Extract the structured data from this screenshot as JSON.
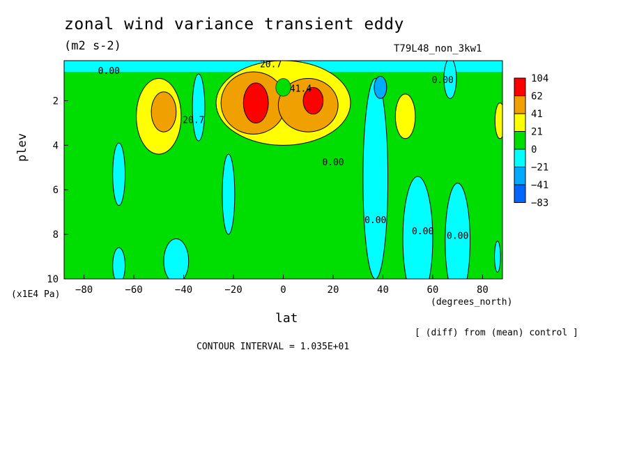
{
  "title": "zonal wind variance transient eddy",
  "units": "(m2 s-2)",
  "run_label": "T79L48_non_3kw1",
  "note": "[ (diff) from (mean) control ]",
  "contour_interval": "CONTOUR INTERVAL = 1.035E+01",
  "chart_data": {
    "type": "heatmap",
    "title": "zonal wind variance transient eddy",
    "subtitle": "(m2 s-2)",
    "xlabel": "lat",
    "x_unit": "(degrees_north)",
    "ylabel": "plev",
    "y_unit": "(x1E4 Pa)",
    "xlim": [
      -88,
      88
    ],
    "ylim": [
      10,
      0.2
    ],
    "x_ticks": [
      -80,
      -60,
      -40,
      -20,
      0,
      20,
      40,
      60,
      80
    ],
    "y_ticks": [
      2,
      4,
      6,
      8,
      10
    ],
    "colorbar": {
      "labels": [
        "104",
        "62",
        "41",
        "21",
        "0",
        "-21",
        "-41",
        "-83"
      ],
      "colors": [
        "#ff0000",
        "#f0a000",
        "#ffff00",
        "#00dd00",
        "#00ffff",
        "#00aaff",
        "#0066ff"
      ]
    },
    "contour_labels": [
      {
        "text": "0.00",
        "lat": -70,
        "plev": 0.8
      },
      {
        "text": "20.7",
        "lat": -5,
        "plev": 0.5
      },
      {
        "text": "41.4",
        "lat": 7,
        "plev": 1.6
      },
      {
        "text": "20.7",
        "lat": -36,
        "plev": 3.0
      },
      {
        "text": "0.00",
        "lat": 20,
        "plev": 4.9
      },
      {
        "text": "0.00",
        "lat": 37,
        "plev": 7.5
      },
      {
        "text": "0.00",
        "lat": 56,
        "plev": 8.0
      },
      {
        "text": "0.00",
        "lat": 70,
        "plev": 8.2
      },
      {
        "text": "0.00",
        "lat": 64,
        "plev": 1.2
      }
    ],
    "regions": [
      {
        "level": "0_to_21",
        "shape": "background",
        "lat_range": [
          -88,
          88
        ],
        "plev_range": [
          0.2,
          10
        ]
      },
      {
        "level": "-21_to_0",
        "shape": "band",
        "lat_range": [
          -88,
          88
        ],
        "plev_range": [
          0.2,
          0.7
        ]
      },
      {
        "level": "-21_to_0",
        "shape": "ellipse",
        "lat": -66,
        "plev": 5.3,
        "dlat": 2.5,
        "dplev": 1.4
      },
      {
        "level": "-21_to_0",
        "shape": "ellipse",
        "lat": -66,
        "plev": 9.4,
        "dlat": 2.5,
        "dplev": 0.8
      },
      {
        "level": "-21_to_0",
        "shape": "ellipse",
        "lat": -43,
        "plev": 9.2,
        "dlat": 5,
        "dplev": 1.0
      },
      {
        "level": "-21_to_0",
        "shape": "ellipse",
        "lat": -22,
        "plev": 6.2,
        "dlat": 2.5,
        "dplev": 1.8
      },
      {
        "level": "-21_to_0",
        "shape": "ellipse",
        "lat": -34,
        "plev": 2.3,
        "dlat": 2.5,
        "dplev": 1.5
      },
      {
        "level": "-21_to_0",
        "shape": "column",
        "lat": 37,
        "plev": 5.5,
        "dlat": 5,
        "dplev": 4.5
      },
      {
        "level": "-21_to_0",
        "shape": "ellipse",
        "lat": 54,
        "plev": 8.2,
        "dlat": 6,
        "dplev": 2.8
      },
      {
        "level": "-21_to_0",
        "shape": "ellipse",
        "lat": 70,
        "plev": 8.3,
        "dlat": 5,
        "dplev": 2.6
      },
      {
        "level": "-21_to_0",
        "shape": "ellipse",
        "lat": 67,
        "plev": 1.0,
        "dlat": 2.5,
        "dplev": 0.9
      },
      {
        "level": "-21_to_0",
        "shape": "ellipse",
        "lat": 86,
        "plev": 9.0,
        "dlat": 1.2,
        "dplev": 0.7
      },
      {
        "level": "-41_to_-21",
        "shape": "ellipse",
        "lat": 39,
        "plev": 1.4,
        "dlat": 2.5,
        "dplev": 0.5
      },
      {
        "level": "21_to_41",
        "shape": "ellipse",
        "lat": -50,
        "plev": 2.7,
        "dlat": 9,
        "dplev": 1.7
      },
      {
        "level": "21_to_41",
        "shape": "ellipse",
        "lat": 0,
        "plev": 2.1,
        "dlat": 27,
        "dplev": 1.9
      },
      {
        "level": "21_to_41",
        "shape": "ellipse",
        "lat": 49,
        "plev": 2.7,
        "dlat": 4,
        "dplev": 1.0
      },
      {
        "level": "21_to_41",
        "shape": "ellipse",
        "lat": 87,
        "plev": 2.9,
        "dlat": 2,
        "dplev": 0.8
      },
      {
        "level": "41_to_62",
        "shape": "ellipse",
        "lat": -48,
        "plev": 2.5,
        "dlat": 5,
        "dplev": 0.9
      },
      {
        "level": "41_to_62",
        "shape": "ellipse",
        "lat": -12,
        "plev": 2.1,
        "dlat": 13,
        "dplev": 1.4
      },
      {
        "level": "41_to_62",
        "shape": "ellipse",
        "lat": 10,
        "plev": 2.2,
        "dlat": 12,
        "dplev": 1.2
      },
      {
        "level": "62_to_104",
        "shape": "ellipse",
        "lat": -11,
        "plev": 2.1,
        "dlat": 5,
        "dplev": 0.9
      },
      {
        "level": "62_to_104",
        "shape": "ellipse",
        "lat": 12,
        "plev": 2.0,
        "dlat": 4,
        "dplev": 0.6
      },
      {
        "level": "0_to_21",
        "shape": "ellipse",
        "lat": 0,
        "plev": 1.4,
        "dlat": 3,
        "dplev": 0.4
      }
    ]
  }
}
